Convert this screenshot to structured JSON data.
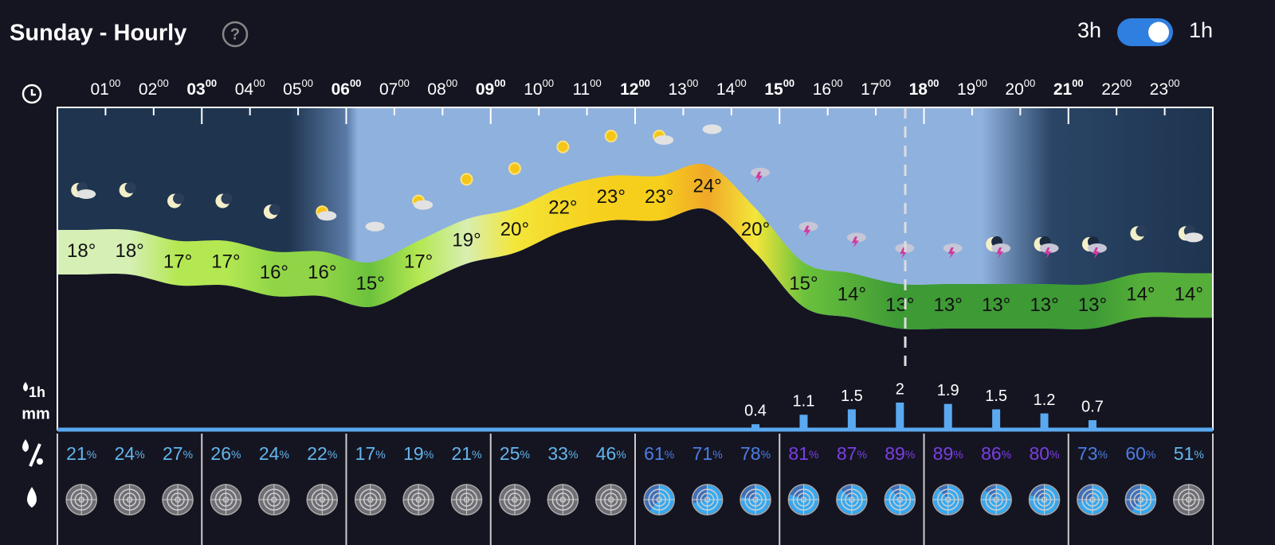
{
  "header": {
    "title": "Sunday - Hourly",
    "help": "?",
    "toggle_left": "3h",
    "toggle_right": "1h"
  },
  "hours": [
    {
      "hour": "01",
      "minute": "00"
    },
    {
      "hour": "02",
      "minute": "00"
    },
    {
      "hour": "03",
      "minute": "00"
    },
    {
      "hour": "04",
      "minute": "00"
    },
    {
      "hour": "05",
      "minute": "00"
    },
    {
      "hour": "06",
      "minute": "00"
    },
    {
      "hour": "07",
      "minute": "00"
    },
    {
      "hour": "08",
      "minute": "00"
    },
    {
      "hour": "09",
      "minute": "00"
    },
    {
      "hour": "10",
      "minute": "00"
    },
    {
      "hour": "11",
      "minute": "00"
    },
    {
      "hour": "12",
      "minute": "00"
    },
    {
      "hour": "13",
      "minute": "00"
    },
    {
      "hour": "14",
      "minute": "00"
    },
    {
      "hour": "15",
      "minute": "00"
    },
    {
      "hour": "16",
      "minute": "00"
    },
    {
      "hour": "17",
      "minute": "00"
    },
    {
      "hour": "18",
      "minute": "00"
    },
    {
      "hour": "19",
      "minute": "00"
    },
    {
      "hour": "20",
      "minute": "00"
    },
    {
      "hour": "21",
      "minute": "00"
    },
    {
      "hour": "22",
      "minute": "00"
    },
    {
      "hour": "23",
      "minute": "00"
    }
  ],
  "temperature": {
    "unit": "°",
    "values": [
      18,
      18,
      17,
      17,
      16,
      16,
      15,
      17,
      19,
      20,
      22,
      23,
      23,
      24,
      20,
      15,
      14,
      13,
      13,
      13,
      13,
      13,
      14,
      14
    ]
  },
  "icons": [
    "moon-cloud",
    "moon",
    "moon",
    "moon",
    "moon",
    "sun-cloud",
    "cloud",
    "sun-cloud",
    "sun",
    "sun",
    "sun",
    "sun",
    "sun-cloud",
    "cloud",
    "storm",
    "storm",
    "storm",
    "storm",
    "storm",
    "storm-night",
    "storm-night",
    "storm-night",
    "moon",
    "moon-cloud"
  ],
  "precipitation": {
    "unit_top": "1h",
    "unit_bottom": "mm",
    "values": [
      null,
      null,
      null,
      null,
      null,
      null,
      null,
      null,
      null,
      null,
      null,
      null,
      null,
      null,
      0.4,
      1.1,
      1.5,
      2,
      1.9,
      1.5,
      1.2,
      0.7,
      null,
      null
    ]
  },
  "probability": {
    "unit": "%",
    "values": [
      21,
      24,
      27,
      26,
      24,
      22,
      17,
      19,
      21,
      25,
      33,
      46,
      61,
      71,
      78,
      81,
      87,
      89,
      89,
      86,
      80,
      73,
      60,
      51
    ]
  }
}
